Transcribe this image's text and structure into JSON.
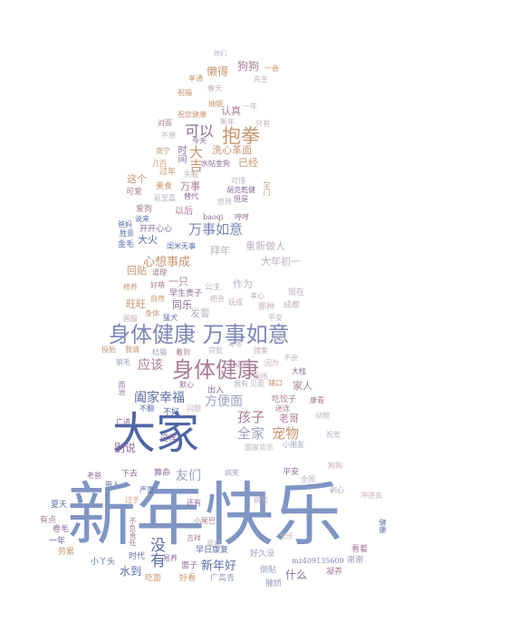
{
  "title": "",
  "words": [
    {
      "text": "新年快乐",
      "color": "#7f95c4"
    },
    {
      "text": "大家",
      "color": "#4f66a8"
    },
    {
      "text": "身体健康 万事如意",
      "color": "#7d87b8"
    },
    {
      "text": "身体健康",
      "color": "#a97c94"
    },
    {
      "text": "万事如意",
      "color": "#7d87b8"
    },
    {
      "text": "抱拳",
      "color": "#c8956f"
    },
    {
      "text": "可以",
      "color": "#8a6c9a"
    },
    {
      "text": "阖家幸福",
      "color": "#5b6fa8"
    },
    {
      "text": "孩子",
      "color": "#a97c94"
    },
    {
      "text": "全家",
      "color": "#9aa0c0"
    },
    {
      "text": "宠物",
      "color": "#c8956f"
    },
    {
      "text": "新年好",
      "color": "#5b6fa8"
    },
    {
      "text": "没有",
      "color": "#5b6fa8"
    },
    {
      "text": "心想事成",
      "color": "#c8956f"
    },
    {
      "text": "方便面",
      "color": "#9aa0c0"
    },
    {
      "text": "应该",
      "color": "#a97c94"
    },
    {
      "text": "友们",
      "color": "#9aa0c0"
    },
    {
      "text": "别说",
      "color": "#8a6c9a"
    },
    {
      "text": "水到",
      "color": "#5b6fa8"
    },
    {
      "text": "什么",
      "color": "#8a6c9a"
    },
    {
      "text": "狗狗",
      "color": "#a97c94"
    },
    {
      "text": "懒得",
      "color": "#c8956f"
    },
    {
      "text": "认真",
      "color": "#a97c94"
    },
    {
      "text": "大吉",
      "color": "#c8956f"
    },
    {
      "text": "这个",
      "color": "#c8956f"
    },
    {
      "text": "万事",
      "color": "#a97c94"
    },
    {
      "text": "以后",
      "color": "#a97c94"
    },
    {
      "text": "大火",
      "color": "#5b6fa8"
    },
    {
      "text": "拜年",
      "color": "#b9b2c2"
    },
    {
      "text": "重新做人",
      "color": "#c3aebe"
    },
    {
      "text": "大年初一",
      "color": "#c3aebe"
    },
    {
      "text": "作为",
      "color": "#b9b2c2"
    },
    {
      "text": "一只",
      "color": "#a97c94"
    },
    {
      "text": "同乐",
      "color": "#8a6c9a"
    },
    {
      "text": "发誓",
      "color": "#b9b2c2"
    },
    {
      "text": "旺旺",
      "color": "#c8956f"
    },
    {
      "text": "回贴",
      "color": "#c8956f"
    },
    {
      "text": "家人",
      "color": "#a97c94"
    },
    {
      "text": "老哥",
      "color": "#a97c94"
    },
    {
      "text": "洗心革面",
      "color": "#c8956f"
    },
    {
      "text": "已经",
      "color": "#c8956f"
    },
    {
      "text": "时间",
      "color": "#8a6c9a"
    },
    {
      "text": "不好",
      "color": "#5b6fa8"
    },
    {
      "text": "下去",
      "color": "#8a6c9a"
    },
    {
      "text": "时代",
      "color": "#5b6fa8"
    },
    {
      "text": "面子",
      "color": "#8a6c9a"
    },
    {
      "text": "早日康复",
      "color": "#5b6fa8"
    },
    {
      "text": "好久没",
      "color": "#9aa0c0"
    },
    {
      "text": "谢谢",
      "color": "#9aa0c0"
    },
    {
      "text": "看着",
      "color": "#a97c94"
    },
    {
      "text": "过年",
      "color": "#c8956f"
    },
    {
      "text": "美食",
      "color": "#c8956f"
    },
    {
      "text": "可爱",
      "color": "#a97c94"
    },
    {
      "text": "爱狗",
      "color": "#a97c94"
    },
    {
      "text": "开开心心",
      "color": "#8a6c9a"
    },
    {
      "text": "金毛",
      "color": "#5b6fa8"
    },
    {
      "text": "早生贵子",
      "color": "#8a6c9a"
    },
    {
      "text": "公主",
      "color": "#b9b2c2"
    },
    {
      "text": "成都",
      "color": "#c3aebe"
    },
    {
      "text": "那种",
      "color": "#c3aebe"
    },
    {
      "text": "现在",
      "color": "#c3aebe"
    },
    {
      "text": "出入",
      "color": "#8a6c9a"
    },
    {
      "text": "平安",
      "color": "#8a6c9a"
    },
    {
      "text": "吃饺子",
      "color": "#a97c94"
    },
    {
      "text": "这样",
      "color": "#8a6c9a"
    },
    {
      "text": "算命",
      "color": "#8a6c9a"
    },
    {
      "text": "夏天",
      "color": "#5b6fa8"
    },
    {
      "text": "有点",
      "color": "#a97c94"
    },
    {
      "text": "卷毛",
      "color": "#8a6c9a"
    },
    {
      "text": "一年",
      "color": "#5b6fa8"
    },
    {
      "text": "劳累",
      "color": "#c8956f"
    },
    {
      "text": "小丫头",
      "color": "#5b6fa8"
    },
    {
      "text": "吃面",
      "color": "#c8956f"
    },
    {
      "text": "好看",
      "color": "#c8956f"
    },
    {
      "text": "广高青",
      "color": "#9aa0c0"
    },
    {
      "text": "倒贴",
      "color": "#9aa0c0"
    },
    {
      "text": "撒娇",
      "color": "#9aa0c0"
    },
    {
      "text": "凝养",
      "color": "#a97c94"
    },
    {
      "text": "mz409135600",
      "color": "#7d87b8"
    },
    {
      "text": "baoqi",
      "color": "#8a6c9a"
    },
    {
      "text": "他们",
      "color": "#b9b2c2"
    },
    {
      "text": "一会",
      "color": "#c8956f"
    },
    {
      "text": "享通",
      "color": "#c8956f"
    },
    {
      "text": "春天",
      "color": "#c3aebe"
    },
    {
      "text": "先生",
      "color": "#c3aebe"
    },
    {
      "text": "祝福",
      "color": "#c8956f"
    },
    {
      "text": "抽烟",
      "color": "#c8956f"
    },
    {
      "text": "祝您健康",
      "color": "#c8956f"
    },
    {
      "text": "新年",
      "color": "#c3aebe"
    },
    {
      "text": "只有",
      "color": "#c3aebe"
    },
    {
      "text": "对面",
      "color": "#a97c94"
    },
    {
      "text": "一年",
      "color": "#c3aebe"
    },
    {
      "text": "不想",
      "color": "#b9b2c2"
    },
    {
      "text": "今天",
      "color": "#8a6c9a"
    },
    {
      "text": "南宁",
      "color": "#c8956f"
    },
    {
      "text": "几百",
      "color": "#c8956f"
    },
    {
      "text": "水帖金狗",
      "color": "#8a6c9a"
    },
    {
      "text": "失眠",
      "color": "#b9b2c2"
    },
    {
      "text": "可惜",
      "color": "#b9b2c2"
    },
    {
      "text": "胡克乾健",
      "color": "#8a6c9a"
    },
    {
      "text": "但是",
      "color": "#8a6c9a"
    },
    {
      "text": "学门",
      "color": "#c8956f"
    },
    {
      "text": "世界",
      "color": "#b9b2c2"
    },
    {
      "text": "替代",
      "color": "#8a6c9a"
    },
    {
      "text": "延至嘉",
      "color": "#b9b2c2"
    },
    {
      "text": "哼哼",
      "color": "#8a6c9a"
    },
    {
      "text": "爸妈",
      "color": "#5b6fa8"
    },
    {
      "text": "说来",
      "color": "#5b6fa8"
    },
    {
      "text": "胜意",
      "color": "#5b6fa8"
    },
    {
      "text": "闺米无事",
      "color": "#5b6fa8"
    },
    {
      "text": "道理",
      "color": "#a97c94"
    },
    {
      "text": "好萌",
      "color": "#a97c94"
    },
    {
      "text": "修养",
      "color": "#c8956f"
    },
    {
      "text": "自然",
      "color": "#c8956f"
    },
    {
      "text": "国服",
      "color": "#c3aebe"
    },
    {
      "text": "身体",
      "color": "#c8956f"
    },
    {
      "text": "猛犬",
      "color": "#5b6fa8"
    },
    {
      "text": "孝心",
      "color": "#c3aebe"
    },
    {
      "text": "相亲",
      "color": "#c3aebe"
    },
    {
      "text": "玩成",
      "color": "#c3aebe"
    },
    {
      "text": "投胎",
      "color": "#c8956f"
    },
    {
      "text": "平安",
      "color": "#c3aebe"
    },
    {
      "text": "不会",
      "color": "#b9b2c2"
    },
    {
      "text": "大桂",
      "color": "#8a6c9a"
    },
    {
      "text": "因为",
      "color": "#c3aebe"
    },
    {
      "text": "搜索",
      "color": "#c3aebe"
    },
    {
      "text": "狼毛",
      "color": "#9aa0c0"
    },
    {
      "text": "桔猫",
      "color": "#9aa0c0"
    },
    {
      "text": "着到",
      "color": "#a97c94"
    },
    {
      "text": "我请",
      "color": "#c8956f"
    },
    {
      "text": "贷款",
      "color": "#b9b2c2"
    },
    {
      "text": "补冬",
      "color": "#b9b2c2"
    },
    {
      "text": "别的",
      "color": "#b9b2c2"
    },
    {
      "text": "厕所",
      "color": "#c3aebe"
    },
    {
      "text": "道理",
      "color": "#c3aebe"
    },
    {
      "text": "我有",
      "color": "#b9b2c2"
    },
    {
      "text": "见面",
      "color": "#b9b2c2"
    },
    {
      "text": "辅口",
      "color": "#c8956f"
    },
    {
      "text": "而治",
      "color": "#8a6c9a"
    },
    {
      "text": "默心",
      "color": "#8a6c9a"
    },
    {
      "text": "广进",
      "color": "#8a6c9a"
    },
    {
      "text": "不翻",
      "color": "#5b6fa8"
    },
    {
      "text": "问题",
      "color": "#c3aebe"
    },
    {
      "text": "迷连",
      "color": "#a97c94"
    },
    {
      "text": "康看",
      "color": "#a97c94"
    },
    {
      "text": "动物",
      "color": "#b9b2c2"
    },
    {
      "text": "小朋友",
      "color": "#9aa0c0"
    },
    {
      "text": "圆家欢乐",
      "color": "#b9b2c2"
    },
    {
      "text": "祝贺",
      "color": "#b9b2c2"
    },
    {
      "text": "老爸",
      "color": "#8a6c9a"
    },
    {
      "text": "带人",
      "color": "#5b6fa8"
    },
    {
      "text": "严重",
      "color": "#5b6fa8"
    },
    {
      "text": "还有",
      "color": "#8a6c9a"
    },
    {
      "text": "过于",
      "color": "#c8956f"
    },
    {
      "text": "小尾巴",
      "color": "#a97c94"
    },
    {
      "text": "吉祥",
      "color": "#a97c94"
    },
    {
      "text": "喜欢",
      "color": "#b9b2c2"
    },
    {
      "text": "易养",
      "color": "#8a6c9a"
    },
    {
      "text": "不负责任",
      "color": "#a97c94"
    },
    {
      "text": "乐乐",
      "color": "#c3aebe"
    },
    {
      "text": "病笑",
      "color": "#9aa0c0"
    },
    {
      "text": "全国",
      "color": "#b9b2c2"
    },
    {
      "text": "冲进去",
      "color": "#c3aebe"
    },
    {
      "text": "健康",
      "color": "#5b6fa8"
    },
    {
      "text": "狗狗",
      "color": "#c3aebe"
    },
    {
      "text": "剁心",
      "color": "#9aa0c0"
    },
    {
      "text": "病笑",
      "color": "#b9b2c2"
    }
  ]
}
